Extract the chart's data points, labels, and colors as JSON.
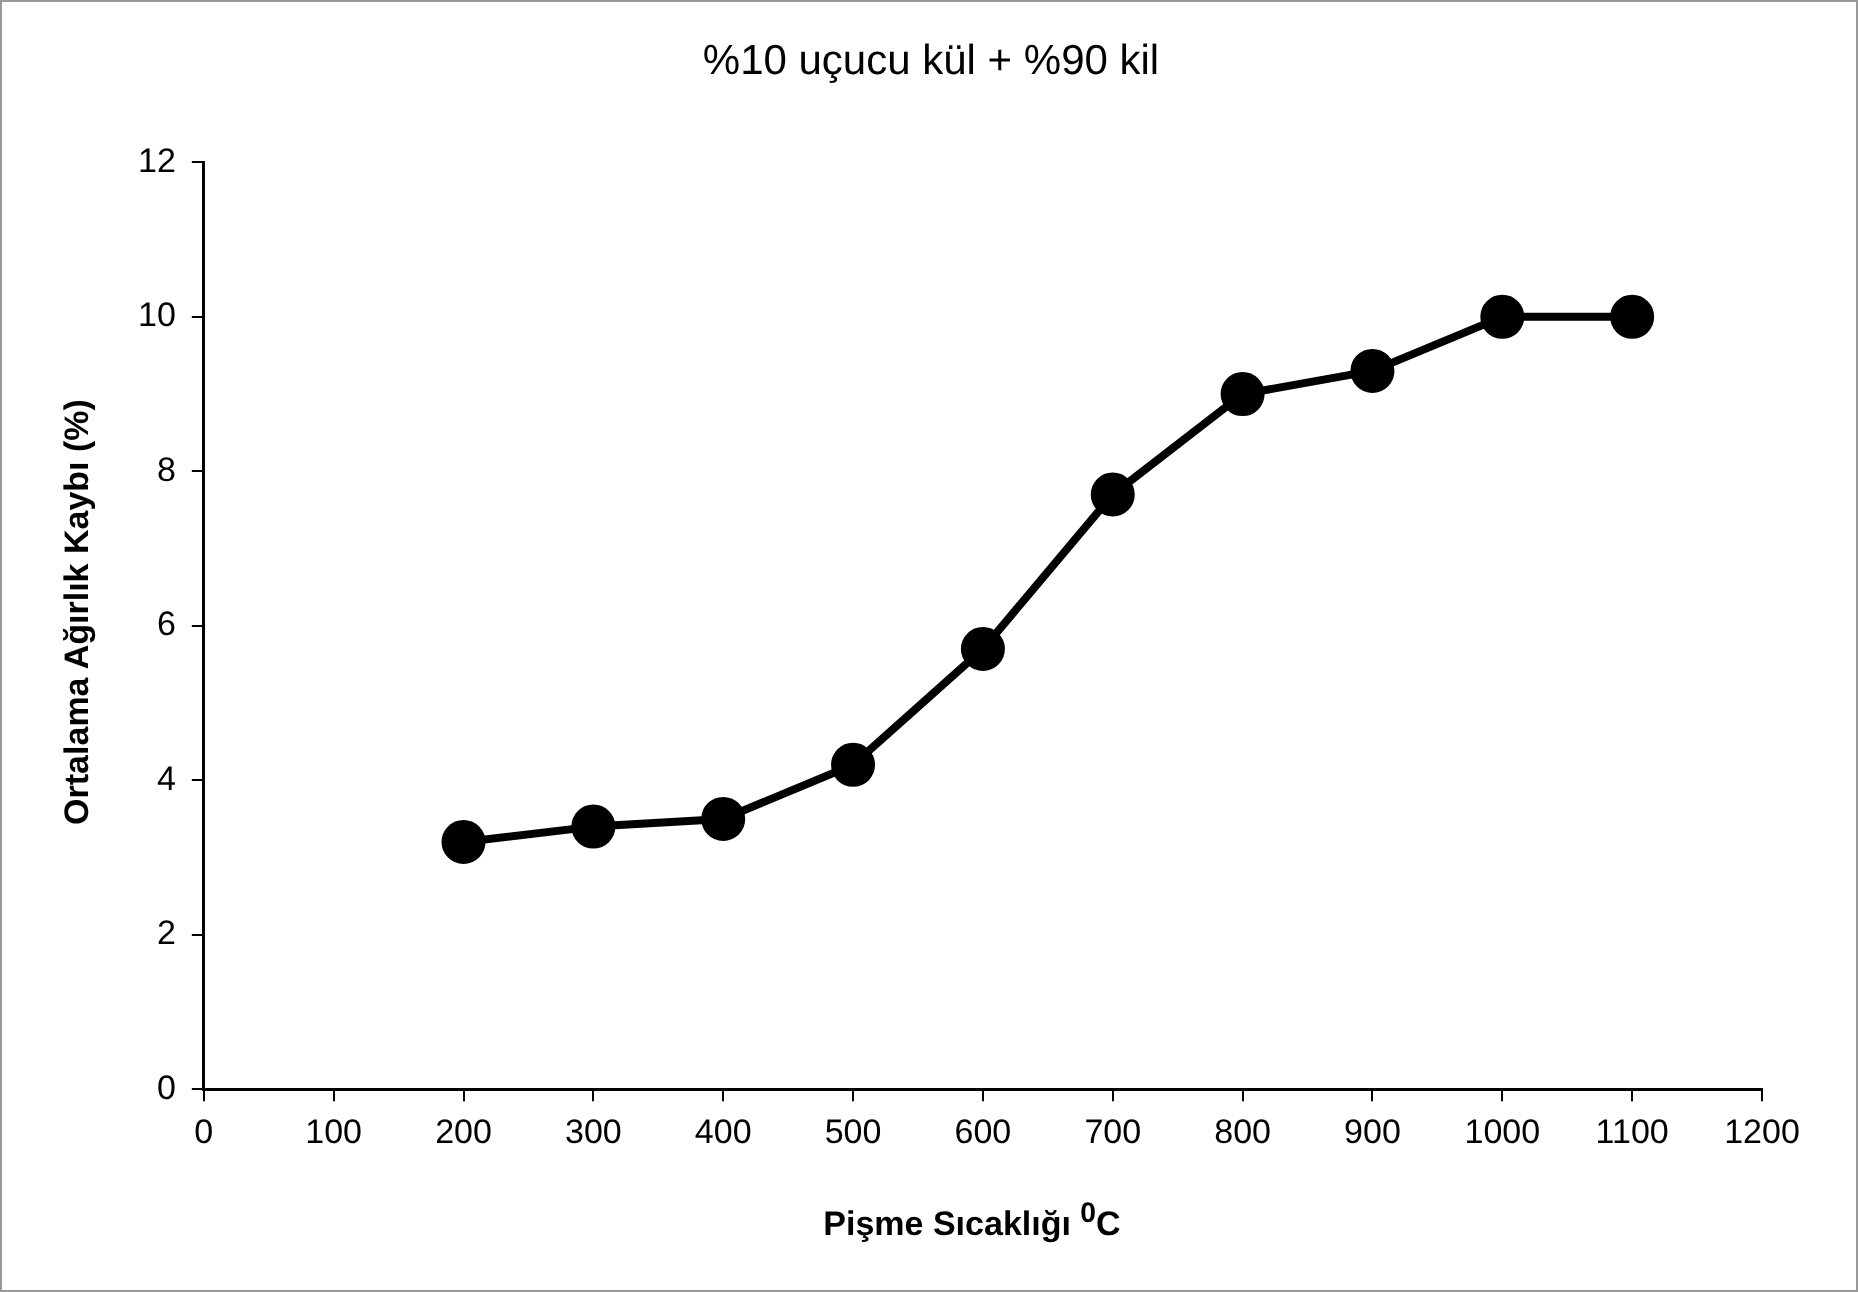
{
  "chart_data": {
    "type": "line",
    "title": "%10 uçucu kül + %90 kil",
    "xlabel": "Pişme Sıcaklığı $^{0}$C",
    "ylabel": "Ortalama Ağırlık Kaybı (%)",
    "x": [
      200,
      300,
      400,
      500,
      600,
      700,
      800,
      900,
      1000,
      1100
    ],
    "series": [
      {
        "color": "#000000",
        "values": [
          3.2,
          3.4,
          3.5,
          4.2,
          5.7,
          7.7,
          9.0,
          9.3,
          10.0,
          10.0
        ]
      }
    ],
    "xlim": [
      0,
      1200
    ],
    "xticks": [
      0,
      100,
      200,
      300,
      400,
      500,
      600,
      700,
      800,
      900,
      1000,
      1100,
      1200
    ],
    "ylim": [
      0,
      12
    ],
    "yticks": [
      0,
      2,
      4,
      6,
      8,
      10,
      12
    ],
    "grid": false,
    "legend": false,
    "marker": "circle",
    "line_style": "solid"
  }
}
